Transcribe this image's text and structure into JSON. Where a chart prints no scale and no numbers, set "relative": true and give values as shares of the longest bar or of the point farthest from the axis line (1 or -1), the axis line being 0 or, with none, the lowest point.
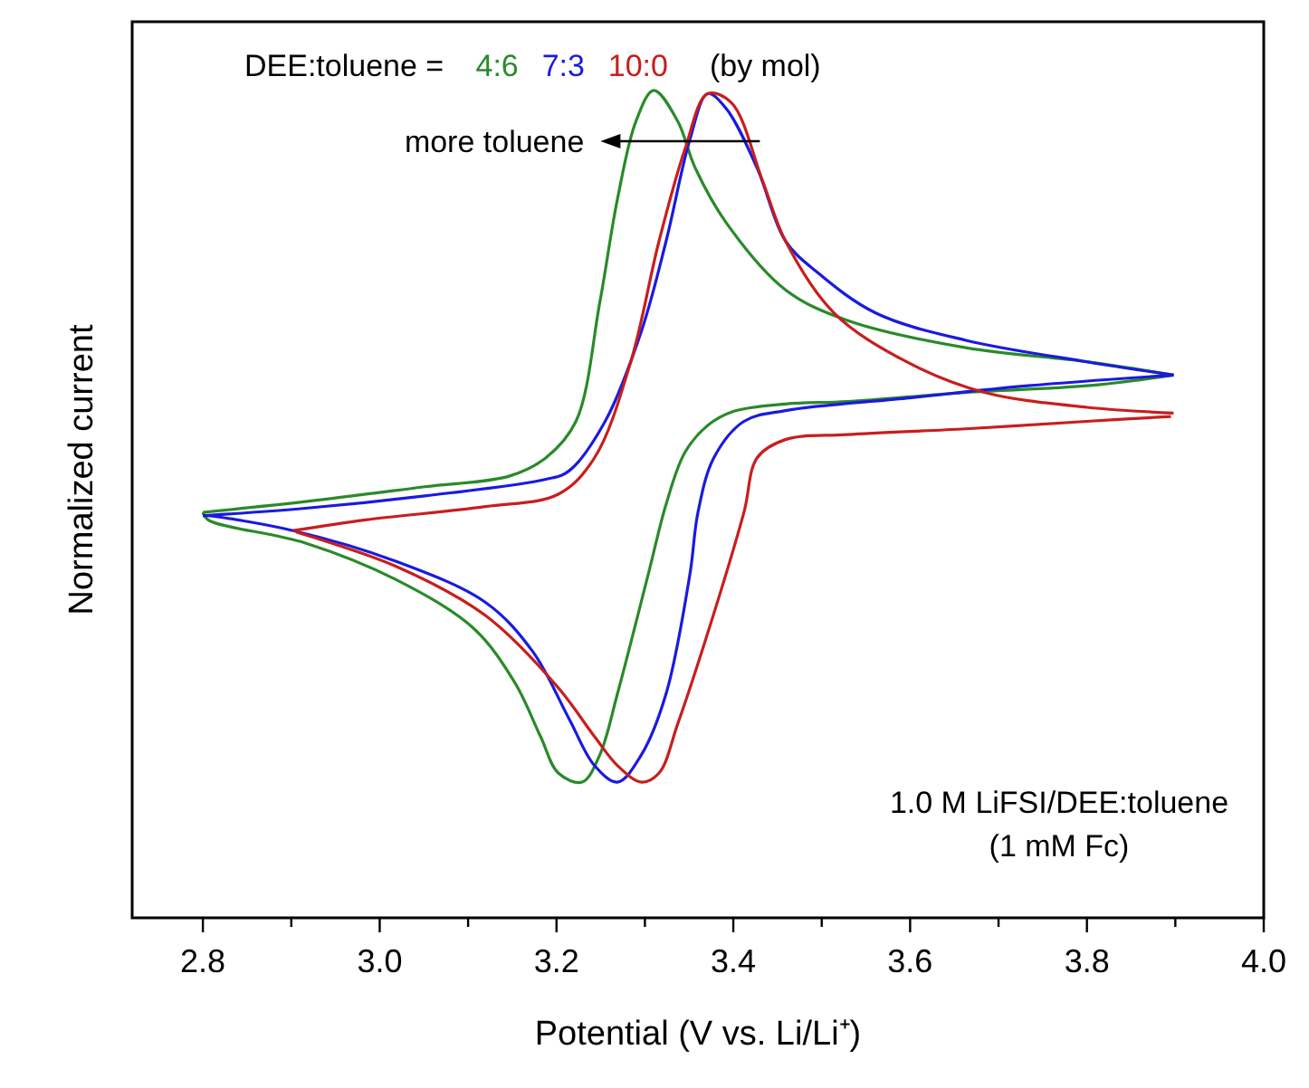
{
  "chart_data": {
    "type": "line",
    "relative": true,
    "xlabel": "Potential (V vs. Li/Li⁺)",
    "ylabel": "Normalized current",
    "legend_title": "DEE:toluene =",
    "annotations": [
      "(by mol)",
      "more toluene",
      "1.0 M LiFSI/DEE:toluene",
      "(1 mM Fc)"
    ],
    "xlim": [
      2.72,
      4.0
    ],
    "xticks": [
      2.8,
      {
        "value": 2.9,
        "label": null
      },
      {
        "value": 3.0,
        "label": "3.0"
      },
      {
        "value": 3.1,
        "label": null
      },
      3.2,
      {
        "value": 3.3,
        "label": null
      },
      3.4,
      {
        "value": 3.5,
        "label": null
      },
      3.6,
      {
        "value": 3.7,
        "label": null
      },
      3.8,
      {
        "value": 3.9,
        "label": null
      },
      {
        "value": 4.0,
        "label": "4.0"
      }
    ],
    "marker": "none",
    "line_style": "solid",
    "series": [
      {
        "name": "4:6",
        "color": "#2a8a2a",
        "x": [
          2.8,
          2.916,
          3.051,
          3.147,
          3.188,
          3.222,
          3.249,
          3.269,
          3.29,
          3.31,
          3.337,
          3.357,
          3.392,
          3.459,
          3.529,
          3.663,
          3.8,
          3.898
        ],
        "values": [
          0.49,
          0.503,
          0.521,
          0.534,
          0.556,
          0.6,
          0.744,
          0.869,
          0.963,
          1.0,
          0.963,
          0.906,
          0.84,
          0.759,
          0.722,
          0.689,
          0.672,
          0.656
        ]
      },
      {
        "color": "#2a8a2a",
        "x": [
          2.8,
          2.806,
          2.916,
          3.018,
          3.106,
          3.153,
          3.182,
          3.202,
          3.229,
          3.249,
          3.269,
          3.304,
          3.324,
          3.345,
          3.371,
          3.4,
          3.459,
          3.529,
          3.663,
          3.8,
          3.898
        ],
        "values": [
          0.49,
          0.481,
          0.453,
          0.409,
          0.35,
          0.284,
          0.219,
          0.175,
          0.164,
          0.197,
          0.271,
          0.416,
          0.5,
          0.562,
          0.595,
          0.612,
          0.621,
          0.624,
          0.635,
          0.643,
          0.656
        ]
      },
      {
        "name": "7:3",
        "color": "#1a1adf",
        "x": [
          2.8,
          2.916,
          3.051,
          3.188,
          3.214,
          3.255,
          3.296,
          3.324,
          3.351,
          3.371,
          3.392,
          3.427,
          3.459,
          3.494,
          3.561,
          3.663,
          3.8,
          3.898
        ],
        "values": [
          0.486,
          0.495,
          0.51,
          0.53,
          0.54,
          0.6,
          0.709,
          0.818,
          0.941,
          0.996,
          0.978,
          0.906,
          0.818,
          0.781,
          0.731,
          0.698,
          0.672,
          0.656
        ]
      },
      {
        "color": "#1a1adf",
        "x": [
          2.8,
          2.806,
          2.902,
          3.018,
          3.12,
          3.173,
          3.214,
          3.243,
          3.269,
          3.296,
          3.324,
          3.351,
          3.36,
          3.378,
          3.412,
          3.459,
          3.596,
          3.733,
          3.898
        ],
        "values": [
          0.486,
          0.486,
          0.468,
          0.431,
          0.381,
          0.322,
          0.241,
          0.184,
          0.164,
          0.197,
          0.271,
          0.416,
          0.49,
          0.556,
          0.6,
          0.613,
          0.628,
          0.643,
          0.656
        ]
      },
      {
        "name": "10:0",
        "color": "#c81e1e",
        "x": [
          2.902,
          2.984,
          3.12,
          3.202,
          3.243,
          3.284,
          3.316,
          3.345,
          3.371,
          3.398,
          3.433,
          3.459,
          3.514,
          3.596,
          3.684,
          3.8,
          3.898
        ],
        "values": [
          0.468,
          0.481,
          0.497,
          0.512,
          0.556,
          0.672,
          0.818,
          0.928,
          0.996,
          0.985,
          0.891,
          0.818,
          0.731,
          0.672,
          0.635,
          0.617,
          0.61
        ]
      },
      {
        "color": "#c81e1e",
        "x": [
          2.906,
          3.018,
          3.12,
          3.202,
          3.243,
          3.269,
          3.296,
          3.316,
          3.337,
          3.371,
          3.412,
          3.427,
          3.459,
          3.529,
          3.663,
          3.8,
          3.895
        ],
        "values": [
          0.466,
          0.425,
          0.365,
          0.278,
          0.219,
          0.184,
          0.164,
          0.175,
          0.234,
          0.344,
          0.49,
          0.556,
          0.578,
          0.584,
          0.591,
          0.6,
          0.606
        ]
      }
    ]
  }
}
